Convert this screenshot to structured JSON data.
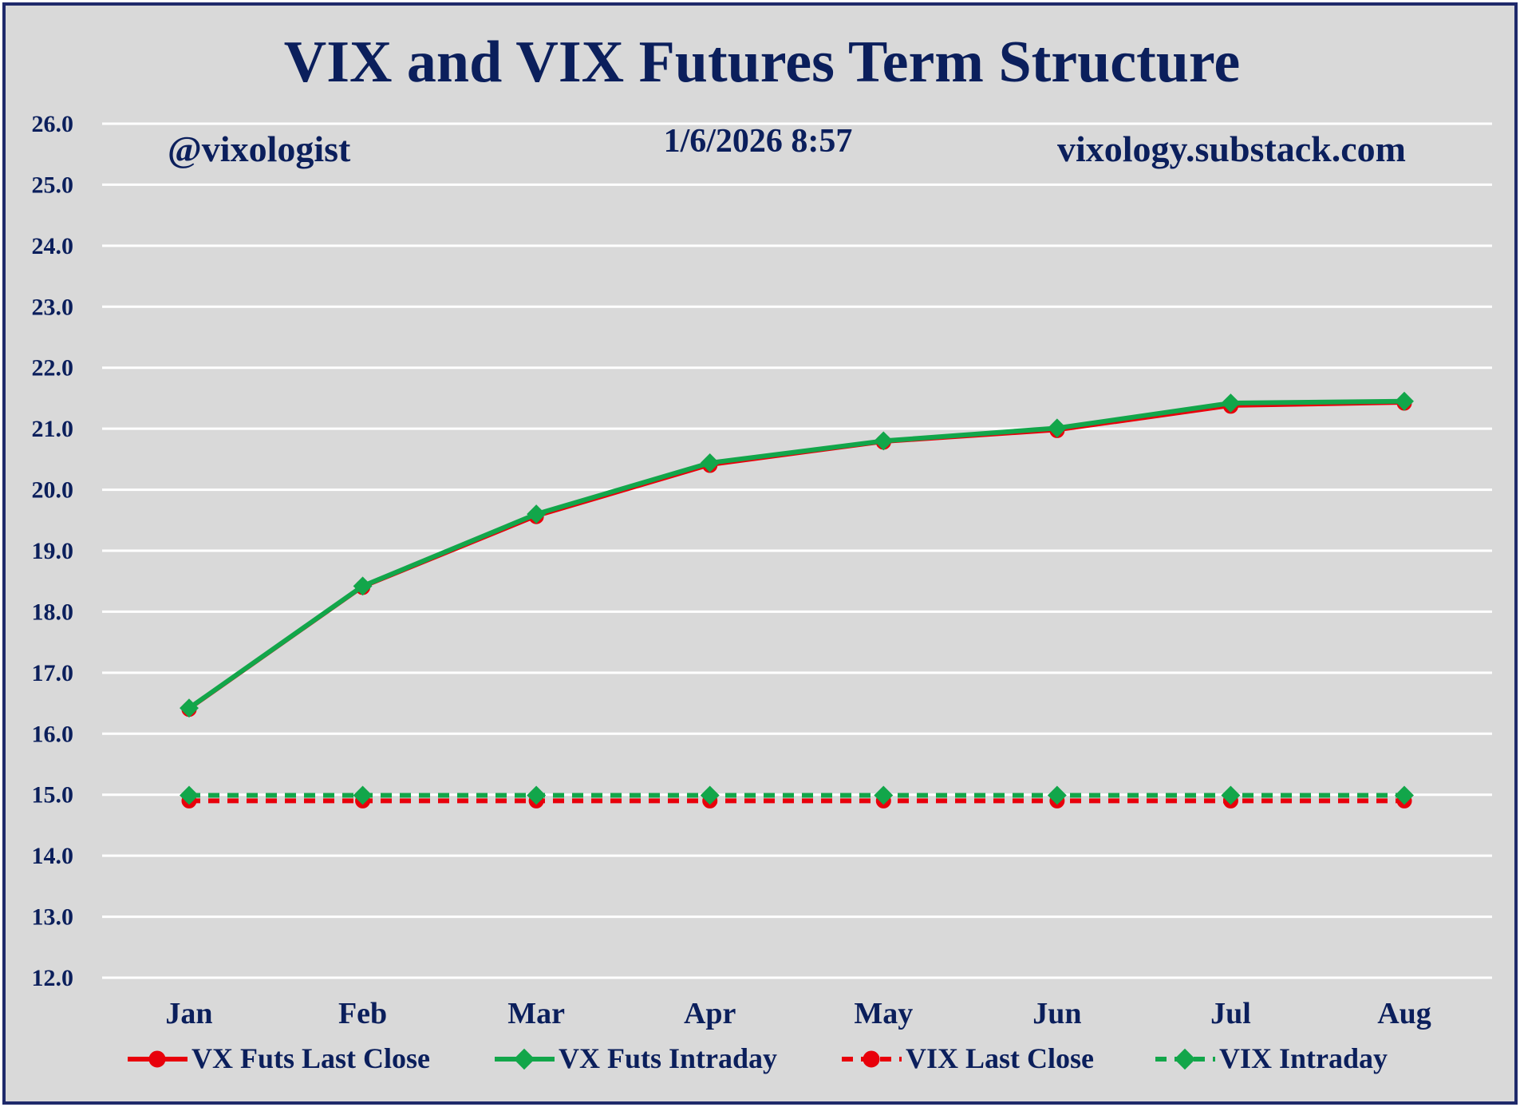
{
  "chart_data": {
    "type": "line",
    "title": "VIX and VIX Futures Term Structure",
    "annotations": {
      "handle": "@vixologist",
      "timestamp": "1/6/2026 8:57",
      "site": "vixology.substack.com"
    },
    "categories": [
      "Jan",
      "Feb",
      "Mar",
      "Apr",
      "May",
      "Jun",
      "Jul",
      "Aug"
    ],
    "ylim": [
      12.0,
      26.0
    ],
    "yticks": [
      "12.0",
      "13.0",
      "14.0",
      "15.0",
      "16.0",
      "17.0",
      "18.0",
      "19.0",
      "20.0",
      "21.0",
      "22.0",
      "23.0",
      "24.0",
      "25.0",
      "26.0"
    ],
    "grid": true,
    "legend_position": "bottom",
    "series": [
      {
        "name": "VX Futs Last Close",
        "color": "#e8000b",
        "line": "solid",
        "marker": "circle",
        "values": [
          16.4,
          18.4,
          19.56,
          20.4,
          20.78,
          20.97,
          21.37,
          21.42
        ]
      },
      {
        "name": "VX Futs Intraday",
        "color": "#12a64a",
        "line": "solid",
        "marker": "diamond",
        "values": [
          16.42,
          18.42,
          19.6,
          20.44,
          20.8,
          21.01,
          21.42,
          21.45
        ]
      },
      {
        "name": "VIX Last Close",
        "color": "#e8000b",
        "line": "dashed",
        "marker": "circle",
        "values": [
          14.9,
          14.9,
          14.9,
          14.9,
          14.9,
          14.9,
          14.9,
          14.9
        ]
      },
      {
        "name": "VIX Intraday",
        "color": "#12a64a",
        "line": "dashed",
        "marker": "diamond",
        "values": [
          14.99,
          14.99,
          14.99,
          14.99,
          14.99,
          14.99,
          14.99,
          14.99
        ]
      }
    ],
    "colors": {
      "background": "#d9d9d9",
      "border": "#1f2a6b",
      "text": "#0b1f5c",
      "grid": "#ffffff"
    }
  }
}
